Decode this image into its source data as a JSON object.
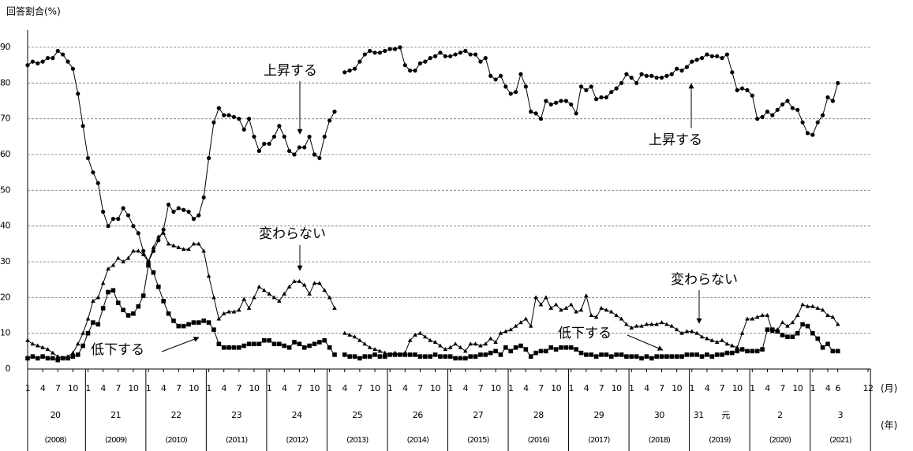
{
  "chart_data": {
    "type": "line",
    "y_label": "回答割合(%)",
    "ylim": [
      0,
      90
    ],
    "yticks": [
      0,
      10,
      20,
      30,
      40,
      50,
      60,
      70,
      80,
      90
    ],
    "grid": true,
    "xlim": [
      0,
      167
    ],
    "xticks": [
      {
        "value": 0,
        "label": "1"
      },
      {
        "value": 3,
        "label": "4"
      },
      {
        "value": 6,
        "label": "7"
      },
      {
        "value": 9,
        "label": "10"
      },
      {
        "value": 12,
        "label": "1"
      },
      {
        "value": 15,
        "label": "4"
      },
      {
        "value": 18,
        "label": "7"
      },
      {
        "value": 21,
        "label": "10"
      },
      {
        "value": 24,
        "label": "1"
      },
      {
        "value": 27,
        "label": "4"
      },
      {
        "value": 30,
        "label": "7"
      },
      {
        "value": 33,
        "label": "10"
      },
      {
        "value": 36,
        "label": "1"
      },
      {
        "value": 39,
        "label": "4"
      },
      {
        "value": 42,
        "label": "7"
      },
      {
        "value": 45,
        "label": "10"
      },
      {
        "value": 48,
        "label": "1"
      },
      {
        "value": 51,
        "label": "4"
      },
      {
        "value": 54,
        "label": "7"
      },
      {
        "value": 57,
        "label": "10"
      },
      {
        "value": 60,
        "label": "1"
      },
      {
        "value": 63,
        "label": "4"
      },
      {
        "value": 66,
        "label": "7"
      },
      {
        "value": 69,
        "label": "10"
      },
      {
        "value": 72,
        "label": "1"
      },
      {
        "value": 75,
        "label": "4"
      },
      {
        "value": 78,
        "label": "7"
      },
      {
        "value": 81,
        "label": "10"
      },
      {
        "value": 84,
        "label": "1"
      },
      {
        "value": 87,
        "label": "4"
      },
      {
        "value": 90,
        "label": "7"
      },
      {
        "value": 93,
        "label": "10"
      },
      {
        "value": 96,
        "label": "1"
      },
      {
        "value": 99,
        "label": "4"
      },
      {
        "value": 102,
        "label": "7"
      },
      {
        "value": 105,
        "label": "10"
      },
      {
        "value": 108,
        "label": "1"
      },
      {
        "value": 111,
        "label": "4"
      },
      {
        "value": 114,
        "label": "7"
      },
      {
        "value": 117,
        "label": "10"
      },
      {
        "value": 120,
        "label": "1"
      },
      {
        "value": 123,
        "label": "4"
      },
      {
        "value": 126,
        "label": "7"
      },
      {
        "value": 129,
        "label": "10"
      },
      {
        "value": 132,
        "label": "1"
      },
      {
        "value": 135,
        "label": "4"
      },
      {
        "value": 138,
        "label": "7"
      },
      {
        "value": 141,
        "label": "10"
      },
      {
        "value": 144,
        "label": "1"
      },
      {
        "value": 147,
        "label": "4"
      },
      {
        "value": 150,
        "label": "7"
      },
      {
        "value": 153,
        "label": "10"
      },
      {
        "value": 156,
        "label": "1"
      },
      {
        "value": 159,
        "label": "4"
      },
      {
        "value": 161,
        "label": "6"
      },
      {
        "value": 167,
        "label": "12"
      }
    ],
    "x_unit": "(月)",
    "year_unit": "(年)",
    "years": [
      {
        "era": [
          "20"
        ],
        "western": "(2008)"
      },
      {
        "era": [
          "21"
        ],
        "western": "(2009)"
      },
      {
        "era": [
          "22"
        ],
        "western": "(2010)"
      },
      {
        "era": [
          "23"
        ],
        "western": "(2011)"
      },
      {
        "era": [
          "24"
        ],
        "western": "(2012)"
      },
      {
        "era": [
          "25"
        ],
        "western": "(2013)"
      },
      {
        "era": [
          "26"
        ],
        "western": "(2014)"
      },
      {
        "era": [
          "27"
        ],
        "western": "(2015)"
      },
      {
        "era": [
          "28"
        ],
        "western": "(2016)"
      },
      {
        "era": [
          "29"
        ],
        "western": "(2017)"
      },
      {
        "era": [
          "30"
        ],
        "western": "(2018)"
      },
      {
        "era": [
          "31",
          "元"
        ],
        "western": "(2019)"
      },
      {
        "era": [
          "2"
        ],
        "western": "(2020)"
      },
      {
        "era": [
          "3"
        ],
        "western": "(2021)"
      }
    ],
    "series": [
      {
        "name": "上昇する",
        "marker": "circle",
        "color": "#000000",
        "values": [
          85,
          86,
          85.5,
          86,
          87,
          87,
          89,
          88,
          86,
          84,
          77,
          68,
          59,
          55,
          52,
          44,
          40,
          42,
          42,
          45,
          43,
          40,
          38,
          33,
          30,
          33,
          36,
          39,
          46,
          44,
          45,
          44.5,
          44,
          42,
          43,
          48,
          59,
          69,
          73,
          71,
          71,
          70.5,
          70,
          67,
          70,
          65,
          61,
          63,
          63,
          65,
          68,
          65,
          61,
          60,
          62,
          62,
          65,
          60,
          59,
          65,
          69.5,
          72,
          null,
          83,
          83.5,
          84,
          86,
          88,
          89,
          88.5,
          88.5,
          89,
          89.5,
          89.5,
          90,
          85,
          83.5,
          83.5,
          85.5,
          86,
          87,
          87.5,
          88.5,
          87.5,
          87.5,
          88,
          88.5,
          89,
          88,
          88,
          86,
          87,
          82,
          81,
          82,
          79,
          77,
          77.5,
          82.5,
          79,
          72,
          71.5,
          70,
          75,
          74,
          74.5,
          75,
          75,
          74,
          71.5,
          79,
          78,
          79,
          75.5,
          76,
          76,
          77.5,
          78.5,
          80,
          82.5,
          81.5,
          80,
          82.5,
          82,
          82,
          81.5,
          81.5,
          82,
          82.5,
          84,
          83.5,
          84.5,
          86,
          86.5,
          87,
          88,
          87.5,
          87.5,
          87,
          88,
          83,
          78,
          78.5,
          78,
          76.5,
          70,
          70.5,
          72,
          71,
          72.5,
          74,
          75,
          73,
          72.5,
          69,
          66,
          65.5,
          69,
          71,
          76,
          75,
          80
        ]
      },
      {
        "name": "変わらない",
        "marker": "triangle",
        "color": "#000000",
        "values": [
          8,
          7,
          6.5,
          6,
          5.5,
          4.5,
          3.5,
          3,
          3.5,
          4.5,
          7,
          10,
          14,
          19,
          20,
          24,
          28,
          29,
          31,
          30,
          31,
          33,
          33,
          32,
          30,
          34,
          37,
          38,
          35,
          34.5,
          34,
          33.5,
          33.5,
          35,
          35,
          33,
          26,
          20,
          14,
          15.5,
          16,
          16,
          16.5,
          19.5,
          17,
          20,
          23,
          22,
          21,
          20,
          19,
          21,
          23,
          24.5,
          24.5,
          23.5,
          21,
          24,
          24,
          22,
          20,
          17,
          null,
          10,
          9.5,
          9,
          8,
          7,
          6,
          5.5,
          5,
          4.5,
          4,
          4.5,
          4,
          4.5,
          8,
          9.5,
          10,
          9,
          8,
          7.5,
          6.5,
          5.5,
          6,
          7,
          6,
          5,
          7,
          7,
          6.5,
          7,
          8.5,
          7.5,
          10,
          10.5,
          11,
          12,
          13,
          14,
          12,
          20,
          18,
          20,
          17,
          18,
          16.5,
          17,
          18,
          16,
          16.5,
          20.5,
          15,
          14.5,
          17,
          16.5,
          16,
          15,
          14,
          12.5,
          11.5,
          12,
          12,
          12.5,
          12.5,
          12.5,
          13,
          12.5,
          12,
          11,
          10,
          10.5,
          10.5,
          10,
          9,
          8.5,
          8,
          7.5,
          8,
          7,
          6.5,
          6,
          10,
          14,
          14,
          14.5,
          15,
          15,
          10.5,
          11,
          13,
          12,
          13,
          15,
          18,
          17.5,
          17.5,
          17,
          16.5,
          15,
          14.5,
          12.5
        ]
      },
      {
        "name": "低下する",
        "marker": "square",
        "color": "#000000",
        "values": [
          3,
          3.5,
          3,
          3.5,
          3,
          3,
          2.5,
          3,
          3,
          3.5,
          4,
          6.5,
          10,
          13,
          12.5,
          17,
          21.5,
          22,
          18.5,
          16.5,
          15,
          15.5,
          17.5,
          20.5,
          29,
          27,
          23,
          19,
          15.5,
          13.5,
          12,
          12,
          12.5,
          13,
          13,
          13.5,
          13,
          11,
          7,
          6,
          6,
          6,
          6,
          6.5,
          7,
          7,
          7,
          8,
          8,
          7,
          7,
          6.5,
          6,
          7.5,
          7,
          6,
          6.5,
          7,
          7.5,
          8,
          6,
          4,
          null,
          4,
          3.5,
          3.5,
          3,
          3.5,
          3.5,
          4,
          3.5,
          3.5,
          4,
          4,
          4,
          4,
          4,
          4,
          3.5,
          3.5,
          3.5,
          4,
          3.5,
          3.5,
          3.5,
          3,
          3,
          3,
          3.5,
          3.5,
          4,
          4,
          4.5,
          5,
          4,
          6,
          5,
          6,
          6.5,
          5.5,
          3.5,
          4.5,
          5,
          5,
          6,
          5.5,
          6,
          6,
          6,
          5.5,
          4.5,
          4,
          4,
          3.5,
          4,
          4,
          3.5,
          4,
          4,
          3.5,
          3.5,
          3.5,
          3,
          3.5,
          3,
          3.5,
          3.5,
          3.5,
          3.5,
          3.5,
          3.5,
          4,
          4,
          4,
          3.5,
          4,
          3.5,
          4,
          4,
          4.5,
          4.5,
          5,
          5.5,
          5,
          5,
          5,
          5.5,
          11,
          11,
          10.5,
          9.5,
          9,
          9,
          10,
          12.5,
          12,
          10,
          8.5,
          6,
          7,
          5,
          5
        ]
      }
    ],
    "annotations": [
      "上昇する",
      "上昇する",
      "変わらない",
      "変わらない",
      "低下する",
      "低下する"
    ]
  }
}
